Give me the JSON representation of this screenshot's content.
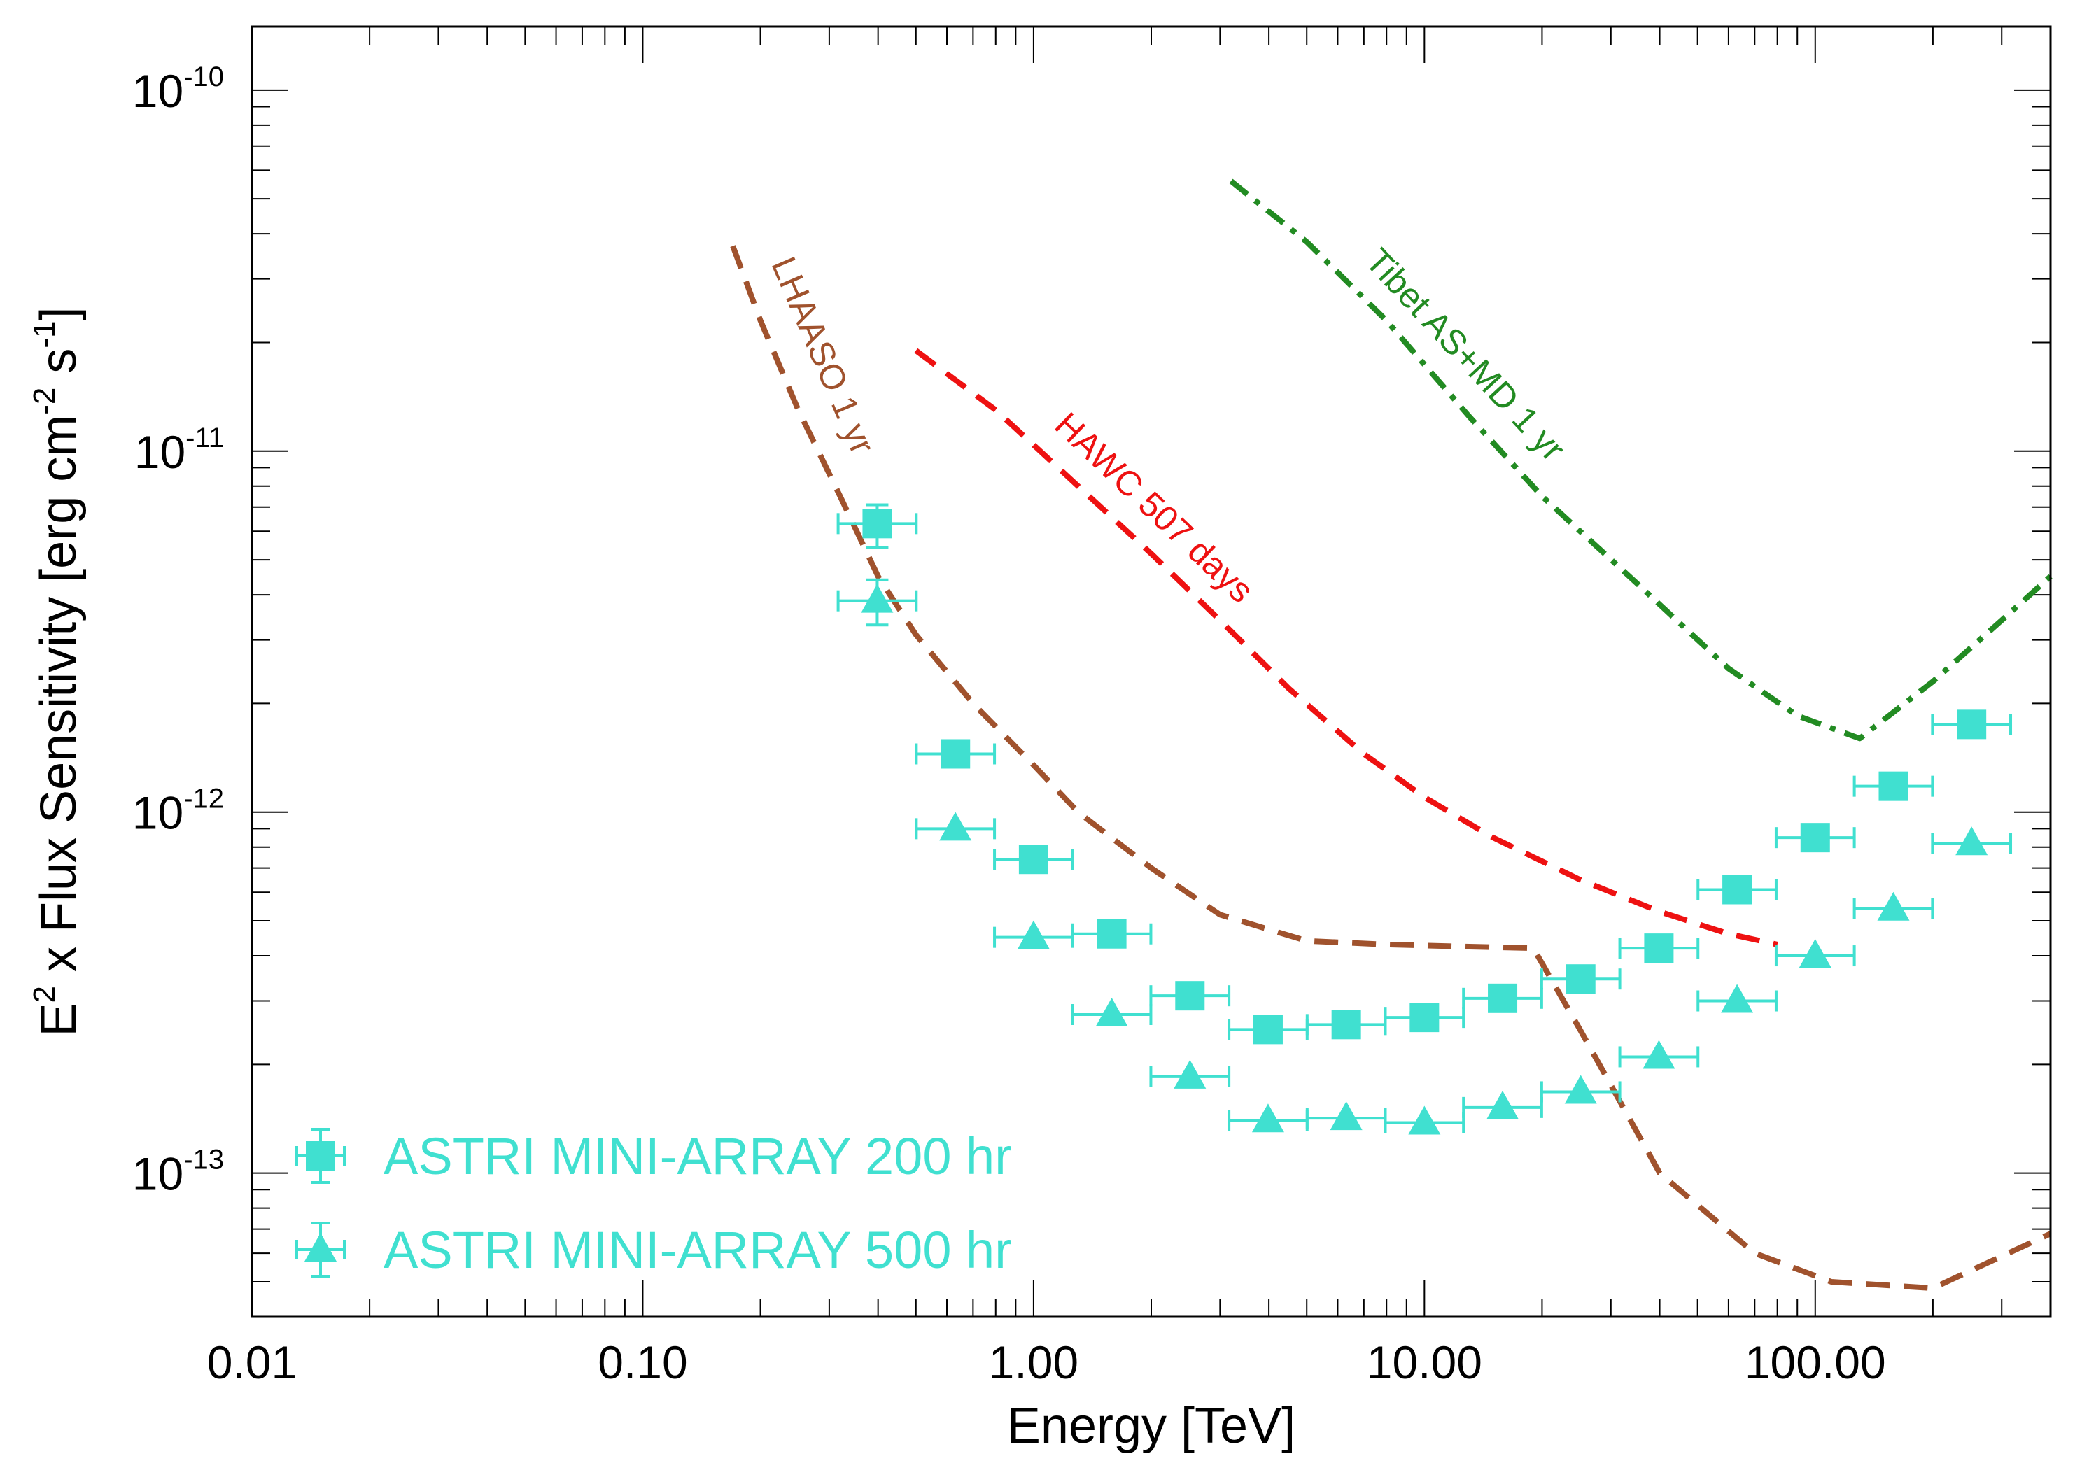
{
  "chart_data": {
    "type": "scatter",
    "xscale": "log",
    "yscale": "log",
    "xlim": [
      0.01,
      400
    ],
    "ylim": [
      4e-14,
      1.5e-10
    ],
    "xlabel": "Energy [TeV]",
    "ylabel": {
      "prefix": "E",
      "prefix_sup": "2",
      "mid": " x Flux Sensitivity [erg cm",
      "mid_sup": "-2",
      "tail": " s",
      "tail_sup": "-1",
      "close": "]"
    },
    "x_ticks": [
      {
        "value": 0.01,
        "label": "0.01"
      },
      {
        "value": 0.1,
        "label": "0.10"
      },
      {
        "value": 1,
        "label": "1.00"
      },
      {
        "value": 10,
        "label": "10.00"
      },
      {
        "value": 100,
        "label": "100.00"
      }
    ],
    "y_ticks": [
      {
        "value": 1e-10,
        "base": "10",
        "exp": "-10"
      },
      {
        "value": 1e-11,
        "base": "10",
        "exp": "-11"
      },
      {
        "value": 1e-12,
        "base": "10",
        "exp": "-12"
      },
      {
        "value": 1e-13,
        "base": "10",
        "exp": "-13"
      }
    ],
    "series": [
      {
        "name": "ASTRI MINI-ARRAY 200 hr",
        "marker": "square",
        "color": "#40E0D0",
        "x": [
          0.398,
          0.631,
          1.0,
          1.585,
          2.512,
          3.981,
          6.31,
          10.0,
          15.85,
          25.12,
          39.81,
          63.1,
          100.0,
          158.5,
          251.2
        ],
        "y": [
          6.3e-12,
          1.45e-12,
          7.4e-13,
          4.6e-13,
          3.1e-13,
          2.5e-13,
          2.58e-13,
          2.7e-13,
          3.05e-13,
          3.45e-13,
          4.2e-13,
          6.1e-13,
          8.5e-13,
          1.18e-12,
          1.75e-12
        ],
        "yerr_low": [
          5.4e-12,
          null,
          null,
          null,
          null,
          null,
          null,
          null,
          null,
          null,
          null,
          null,
          null,
          null,
          null
        ],
        "yerr_high": [
          7.1e-12,
          null,
          null,
          null,
          null,
          null,
          null,
          null,
          null,
          null,
          null,
          null,
          null,
          null,
          null
        ]
      },
      {
        "name": "ASTRI MINI-ARRAY 500 hr",
        "marker": "triangle",
        "color": "#40E0D0",
        "x": [
          0.398,
          0.631,
          1.0,
          1.585,
          2.512,
          3.981,
          6.31,
          10.0,
          15.85,
          25.12,
          39.81,
          63.1,
          100.0,
          158.5,
          251.2
        ],
        "y": [
          3.85e-12,
          9e-13,
          4.5e-13,
          2.75e-13,
          1.85e-13,
          1.4e-13,
          1.42e-13,
          1.38e-13,
          1.52e-13,
          1.68e-13,
          2.1e-13,
          3e-13,
          4e-13,
          5.4e-13,
          8.2e-13
        ],
        "yerr_low": [
          3.3e-12,
          null,
          null,
          null,
          null,
          null,
          null,
          null,
          null,
          null,
          null,
          null,
          null,
          null,
          null
        ],
        "yerr_high": [
          4.4e-12,
          null,
          null,
          null,
          null,
          null,
          null,
          null,
          null,
          null,
          null,
          null,
          null,
          null,
          null
        ]
      }
    ],
    "curves": [
      {
        "name": "LHAASO 1 yr",
        "label": "LHAASO 1 yr",
        "color": "#A0522D",
        "style": "dashed",
        "x": [
          0.17,
          0.2,
          0.25,
          0.32,
          0.4,
          0.5,
          0.7,
          1.0,
          1.3,
          2.0,
          3.0,
          5.0,
          8.0,
          12.0,
          19.0,
          25.0,
          40.0,
          70.0,
          110.0,
          200.0,
          400.0
        ],
        "y": [
          3.7e-11,
          2.3e-11,
          1.3e-11,
          7.5e-12,
          4.5e-12,
          3.1e-12,
          2e-12,
          1.35e-12,
          1e-12,
          7e-13,
          5.2e-13,
          4.4e-13,
          4.3e-13,
          4.25e-13,
          4.2e-13,
          2.5e-13,
          1e-13,
          6e-14,
          5e-14,
          4.8e-14,
          6.8e-14
        ]
      },
      {
        "name": "HAWC 507 days",
        "label": "HAWC 507 days",
        "color": "#EE1111",
        "style": "dashed",
        "x": [
          0.5,
          0.8,
          1.3,
          2.0,
          3.0,
          4.5,
          7.0,
          10.0,
          15.0,
          25.0,
          40.0,
          60.0,
          80.0
        ],
        "y": [
          1.9e-11,
          1.3e-11,
          8e-12,
          5.2e-12,
          3.4e-12,
          2.2e-12,
          1.45e-12,
          1.1e-12,
          8.5e-13,
          6.5e-13,
          5.3e-13,
          4.6e-13,
          4.3e-13
        ]
      },
      {
        "name": "Tibet AS+MD 1 yr",
        "label": "Tibet AS+MD 1 yr",
        "color": "#228B22",
        "style": "dashdot",
        "x": [
          3.2,
          5.0,
          8.0,
          13.0,
          20.0,
          35.0,
          60.0,
          90.0,
          130.0,
          200.0,
          300.0,
          400.0
        ],
        "y": [
          5.6e-11,
          3.8e-11,
          2.3e-11,
          1.25e-11,
          7.5e-12,
          4.3e-12,
          2.5e-12,
          1.85e-12,
          1.6e-12,
          2.3e-12,
          3.4e-12,
          4.5e-12
        ]
      }
    ],
    "legend": {
      "placement": "bottom-left",
      "entries": [
        {
          "label": "ASTRI MINI-ARRAY 200 hr",
          "marker": "square"
        },
        {
          "label": "ASTRI MINI-ARRAY 500 hr",
          "marker": "triangle"
        }
      ]
    },
    "grid": false
  }
}
